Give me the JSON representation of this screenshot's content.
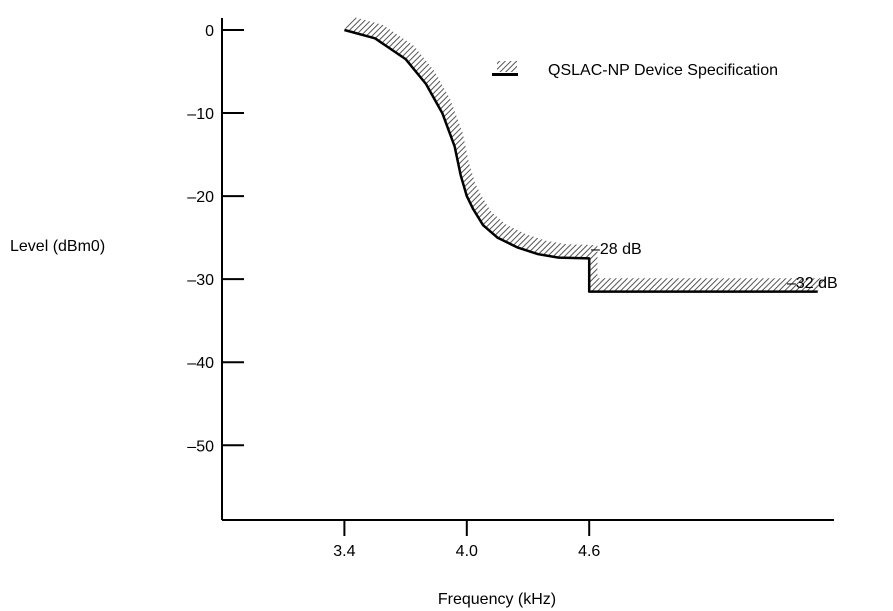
{
  "chart_data": {
    "type": "line",
    "xlabel": "Frequency (kHz)",
    "ylabel": "Level (dBm0)",
    "x_ticks": [
      {
        "value": 3.4,
        "label": "3.4"
      },
      {
        "value": 4.0,
        "label": "4.0"
      },
      {
        "value": 4.6,
        "label": "4.6"
      }
    ],
    "y_ticks": [
      {
        "value": 0,
        "label": "0"
      },
      {
        "value": -10,
        "label": "–10"
      },
      {
        "value": -20,
        "label": "–20"
      },
      {
        "value": -30,
        "label": "–30"
      },
      {
        "value": -40,
        "label": "–40"
      },
      {
        "value": -50,
        "label": "–50"
      }
    ],
    "xlim": [
      2.8,
      5.8
    ],
    "ylim": [
      -59,
      0
    ],
    "grid": false,
    "legend": {
      "label": "QSLAC-NP Device Specification",
      "position": "top-right"
    },
    "series": [
      {
        "name": "QSLAC-NP Device Specification",
        "x": [
          3.4,
          3.55,
          3.7,
          3.8,
          3.88,
          3.94,
          3.97,
          4.0,
          4.03,
          4.08,
          4.15,
          4.25,
          4.35,
          4.45,
          4.6,
          4.6,
          5.72
        ],
        "y": [
          0,
          -1,
          -3.5,
          -6.5,
          -10,
          -14,
          -17.5,
          -20,
          -21.5,
          -23.5,
          -25,
          -26.2,
          -27,
          -27.4,
          -27.5,
          -31.5,
          -31.5
        ]
      }
    ],
    "band": {
      "width_dB": 1.6,
      "width_kHz": 0.04
    },
    "annotations": [
      {
        "text": "–28 dB",
        "x": 4.65,
        "y": -27
      },
      {
        "text": "–32 dB",
        "x": 5.76,
        "y": -30.9
      }
    ],
    "colors": {
      "line": "#000000",
      "hatch": "#555555"
    }
  }
}
